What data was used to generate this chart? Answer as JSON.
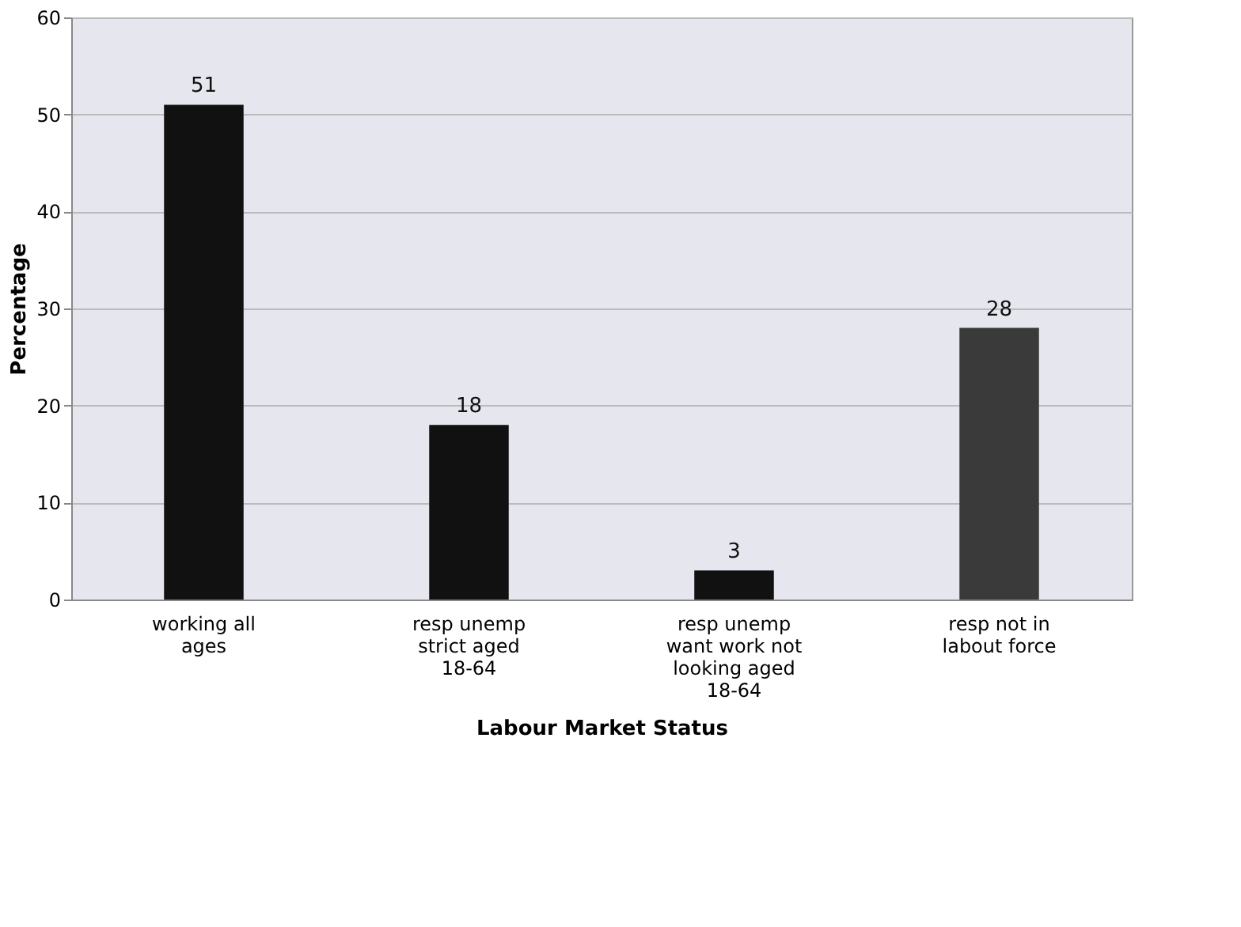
{
  "chart_data": {
    "type": "bar",
    "xlabel": "Labour Market Status",
    "ylabel": "Percentage",
    "categories": [
      "working all ages",
      "resp unemp strict aged 18-64",
      "resp unemp want work not looking aged 18-64",
      "resp not in labout force"
    ],
    "values": [
      51,
      18,
      3,
      28
    ],
    "colors": [
      "#111111",
      "#111111",
      "#111111",
      "#3a3a3a"
    ],
    "ylim": [
      0,
      60
    ],
    "yticks": [
      0,
      10,
      20,
      30,
      40,
      50,
      60
    ],
    "grid": "y",
    "data_labels": true
  }
}
